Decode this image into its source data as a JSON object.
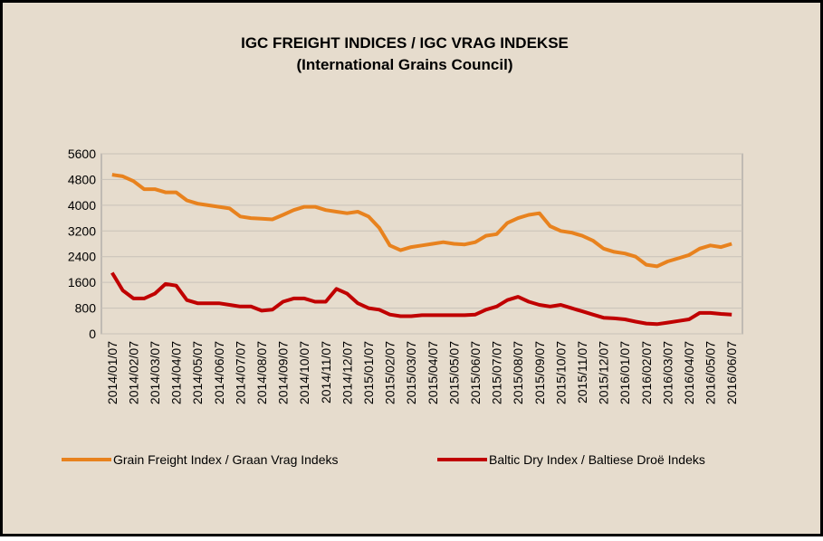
{
  "chart_data": {
    "type": "line",
    "title": "IGC FREIGHT INDICES / IGC VRAG INDEKSE",
    "subtitle": "(International Grains Council)",
    "categories": [
      "2014/01/07",
      null,
      "2014/02/07",
      null,
      "2014/03/07",
      null,
      "2014/04/07",
      null,
      "2014/05/07",
      null,
      "2014/06/07",
      null,
      "2014/07/07",
      null,
      "2014/08/07",
      null,
      "2014/09/07",
      null,
      "2014/10/07",
      null,
      "2014/11/07",
      null,
      "2014/12/07",
      null,
      "2015/01/07",
      null,
      "2015/02/07",
      null,
      "2015/03/07",
      null,
      "2015/04/07",
      null,
      "2015/05/07",
      null,
      "2015/06/07",
      null,
      "2015/07/07",
      null,
      "2015/08/07",
      null,
      "2015/09/07",
      null,
      "2015/10/07",
      null,
      "2015/11/07",
      null,
      "2015/12/07",
      null,
      "2016/01/07",
      null,
      "2016/02/07",
      null,
      "2016/03/07",
      null,
      "2016/04/07",
      null,
      "2016/05/07",
      null,
      "2016/06/07"
    ],
    "series": [
      {
        "name": "Grain Freight Index / Graan Vrag Indeks",
        "color": "#e8821e",
        "values": [
          4950,
          4900,
          4750,
          4500,
          4500,
          4400,
          4400,
          4150,
          4050,
          4000,
          3950,
          3900,
          3650,
          3600,
          3580,
          3560,
          3700,
          3850,
          3950,
          3950,
          3850,
          3800,
          3750,
          3800,
          3650,
          3300,
          2750,
          2600,
          2700,
          2750,
          2800,
          2850,
          2800,
          2780,
          2850,
          3050,
          3100,
          3450,
          3600,
          3700,
          3750,
          3350,
          3200,
          3150,
          3050,
          2900,
          2650,
          2550,
          2500,
          2400,
          2150,
          2100,
          2250,
          2350,
          2450,
          2650,
          2750,
          2700,
          2800
        ]
      },
      {
        "name": "Baltic Dry Index / Baltiese Droë Indeks",
        "color": "#c00000",
        "values": [
          1900,
          1350,
          1100,
          1100,
          1250,
          1550,
          1500,
          1050,
          950,
          950,
          950,
          900,
          850,
          850,
          720,
          750,
          1000,
          1100,
          1100,
          1000,
          1000,
          1400,
          1250,
          950,
          800,
          750,
          600,
          550,
          550,
          580,
          580,
          580,
          580,
          580,
          600,
          750,
          850,
          1050,
          1150,
          1000,
          900,
          850,
          900,
          800,
          700,
          600,
          500,
          480,
          450,
          380,
          320,
          300,
          350,
          400,
          450,
          650,
          650,
          620,
          600
        ]
      }
    ],
    "ylim": [
      0,
      5600
    ],
    "yticks": [
      0,
      800,
      1600,
      2400,
      3200,
      4000,
      4800,
      5600
    ],
    "grid": true,
    "legend": "bottom"
  }
}
